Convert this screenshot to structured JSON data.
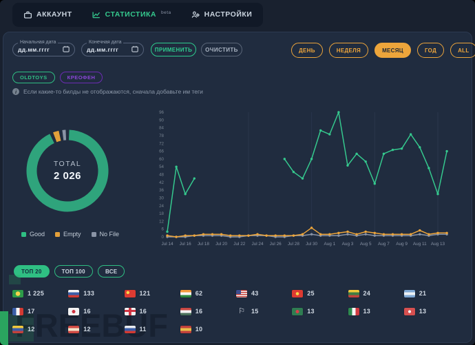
{
  "nav": {
    "items": [
      {
        "label": "АККАУНТ",
        "icon": "briefcase-icon",
        "active": false
      },
      {
        "label": "СТАТИСТИКА",
        "icon": "chart-icon",
        "badge": "beta",
        "active": true
      },
      {
        "label": "НАСТРОЙКИ",
        "icon": "users-gear-icon",
        "active": false
      }
    ]
  },
  "filters": {
    "start_date": {
      "label": "Начальная дата",
      "placeholder": "дд.мм.гггг"
    },
    "end_date": {
      "label": "Конечная дата",
      "placeholder": "дд.мм.гггг"
    },
    "apply_label": "ПРИМЕНИТЬ",
    "clear_label": "ОЧИСТИТЬ",
    "periods": [
      {
        "label": "ДЕНЬ",
        "active": false
      },
      {
        "label": "НЕДЕЛЯ",
        "active": false
      },
      {
        "label": "МЕСЯЦ",
        "active": true
      },
      {
        "label": "ГОД",
        "active": false
      },
      {
        "label": "ALL",
        "active": false
      }
    ],
    "tags": [
      {
        "label": "OLDTOYS",
        "color": "#2fbf83"
      },
      {
        "label": "КРЕОФЕН",
        "color": "#8b46d8"
      }
    ],
    "hint": "Если какие-то билды не отображаются, сначала добавьте им теги"
  },
  "colors": {
    "accent_green": "#2fbf83",
    "accent_orange": "#eda53b",
    "accent_purple": "#8b46d8",
    "good": "#35c98e",
    "empty": "#eda53b",
    "no_file": "#8a94a6"
  },
  "chart_data": [
    {
      "type": "pie",
      "total_label": "TOTAL",
      "total_value": "2 026",
      "legend_position": "bottom",
      "slices": [
        {
          "label": "Good",
          "value": 96.2,
          "color": "#2fa47c"
        },
        {
          "label": "Empty",
          "value": 2.4,
          "color": "#e3a03a"
        },
        {
          "label": "No File",
          "value": 1.4,
          "color": "#8a94a6"
        }
      ],
      "note": "slice percentages estimated from arc lengths; center shows total 2 026"
    },
    {
      "type": "line",
      "x": [
        "Jul 14",
        "Jul 15",
        "Jul 16",
        "Jul 17",
        "Jul 18",
        "Jul 19",
        "Jul 20",
        "Jul 21",
        "Jul 22",
        "Jul 23",
        "Jul 24",
        "Jul 25",
        "Jul 26",
        "Jul 27",
        "Jul 28",
        "Jul 29",
        "Jul 30",
        "Jul 31",
        "Aug 1",
        "Aug 2",
        "Aug 3",
        "Aug 4",
        "Aug 5",
        "Aug 6",
        "Aug 7",
        "Aug 8",
        "Aug 9",
        "Aug 10",
        "Aug 11",
        "Aug 12",
        "Aug 13",
        "Aug 14"
      ],
      "x_tick_labels": [
        "Jul 14",
        "Jul 16",
        "Jul 18",
        "Jul 20",
        "Jul 22",
        "Jul 24",
        "Jul 26",
        "Jul 28",
        "Jul 30",
        "Aug 1",
        "Aug 3",
        "Aug 5",
        "Aug 7",
        "Aug 9",
        "Aug 11",
        "Aug 13"
      ],
      "ylim": [
        0,
        96
      ],
      "y_tick_step": 6,
      "grid": "faint-weekly-vertical",
      "grid_x_indices": [
        9,
        16,
        23,
        30
      ],
      "series": [
        {
          "name": "Good",
          "color": "#35c98e",
          "values": [
            4,
            54,
            33,
            45,
            null,
            null,
            null,
            null,
            null,
            null,
            null,
            null,
            null,
            60,
            50,
            45,
            60,
            82,
            79,
            96,
            55,
            64,
            58,
            41,
            64,
            67,
            68,
            79,
            69,
            53,
            33,
            66
          ]
        },
        {
          "name": "Empty",
          "color": "#eda53b",
          "values": [
            1,
            0,
            1,
            1,
            2,
            2,
            2,
            1,
            1,
            1,
            2,
            1,
            1,
            1,
            1,
            2,
            7,
            2,
            2,
            3,
            4,
            2,
            4,
            3,
            2,
            2,
            2,
            2,
            5,
            2,
            3,
            3
          ]
        },
        {
          "name": "No File",
          "color": "#8a94a6",
          "values": [
            0,
            0,
            0,
            1,
            1,
            1,
            1,
            0,
            0,
            1,
            1,
            1,
            0,
            0,
            1,
            1,
            2,
            1,
            1,
            1,
            2,
            1,
            2,
            1,
            1,
            1,
            1,
            1,
            2,
            1,
            2,
            2
          ]
        }
      ]
    }
  ],
  "top_buttons": [
    {
      "label": "ТОП 20",
      "active": true
    },
    {
      "label": "ТОП 100",
      "active": false
    },
    {
      "label": "ВСЕ",
      "active": false
    }
  ],
  "countries": [
    {
      "name": "brazil",
      "value": "1 225",
      "flag": {
        "kind": "dot",
        "bg": "#2d9b49",
        "dot": "#f5d34c",
        "r": 32
      }
    },
    {
      "name": "russia",
      "value": "133",
      "flag": {
        "kind": "h",
        "c": [
          "#f5f5f5",
          "#3b5ea8",
          "#d13a32"
        ]
      }
    },
    {
      "name": "china",
      "value": "121",
      "flag": {
        "kind": "dot",
        "bg": "#dd3b32",
        "dot": "#f8d848",
        "at": "30% 35%",
        "r": 15
      }
    },
    {
      "name": "india",
      "value": "62",
      "flag": {
        "kind": "h",
        "c": [
          "#f49a3c",
          "#f5f5f5",
          "#2d8a3e"
        ]
      }
    },
    {
      "name": "usa",
      "value": "43",
      "flag": {
        "kind": "usa",
        "stripe1": "#c6423c",
        "stripe2": "#f5f5f5",
        "canton": "#3d4d8f"
      }
    },
    {
      "name": "vietnam",
      "value": "25",
      "flag": {
        "kind": "dot",
        "bg": "#dd3b32",
        "dot": "#f8d848",
        "r": 22
      }
    },
    {
      "name": "lithuania",
      "value": "24",
      "flag": {
        "kind": "h",
        "c": [
          "#f0c83c",
          "#3f7d44",
          "#c1423c"
        ]
      }
    },
    {
      "name": "argentina",
      "value": "21",
      "flag": {
        "kind": "h",
        "c": [
          "#7fa8d4",
          "#eef2f5",
          "#7fa8d4"
        ]
      }
    },
    {
      "name": "france",
      "value": "17",
      "flag": {
        "kind": "v",
        "c": [
          "#3b5ea8",
          "#f5f5f5",
          "#d13a32"
        ]
      }
    },
    {
      "name": "japan",
      "value": "16",
      "flag": {
        "kind": "dot",
        "bg": "#f2f2f2",
        "dot": "#cf3341",
        "r": 24
      }
    },
    {
      "name": "england",
      "value": "16",
      "flag": {
        "kind": "cross",
        "bg": "#f2f2f2",
        "cross": "#cf3341"
      }
    },
    {
      "name": "hungary",
      "value": "16",
      "flag": {
        "kind": "h",
        "c": [
          "#c94843",
          "#f2f2f2",
          "#49705a"
        ]
      }
    },
    {
      "name": "white-flag",
      "value": "15",
      "flag": {
        "kind": "glyph",
        "glyph": "⚐",
        "color": "#e8edf4"
      }
    },
    {
      "name": "bangladesh",
      "value": "13",
      "flag": {
        "kind": "dot",
        "bg": "#2f7d52",
        "dot": "#d6404a",
        "r": 24
      }
    },
    {
      "name": "italy",
      "value": "13",
      "flag": {
        "kind": "v",
        "c": [
          "#2d8a4e",
          "#f5f5f5",
          "#cf3a41"
        ]
      }
    },
    {
      "name": "turkey",
      "value": "13",
      "flag": {
        "kind": "dot",
        "bg": "#d65050",
        "dot": "#f5f5f5",
        "r": 20
      }
    },
    {
      "name": "colombia",
      "value": "12",
      "flag": {
        "kind": "h",
        "c": [
          "#f0c83c",
          "#3b5ea8",
          "#c1423c"
        ]
      }
    },
    {
      "name": "austria",
      "value": "12",
      "flag": {
        "kind": "h",
        "c": [
          "#d04a44",
          "#f2e3c8",
          "#d04a44"
        ]
      }
    },
    {
      "name": "slovakia",
      "value": "11",
      "flag": {
        "kind": "h",
        "c": [
          "#e8ecf0",
          "#3b5ea8",
          "#d13a32"
        ]
      }
    },
    {
      "name": "spain",
      "value": "10",
      "flag": {
        "kind": "h",
        "c": [
          "#c1413c",
          "#e8c04a",
          "#c1413c"
        ]
      }
    }
  ],
  "watermark": {
    "text": "FREEBUF"
  }
}
